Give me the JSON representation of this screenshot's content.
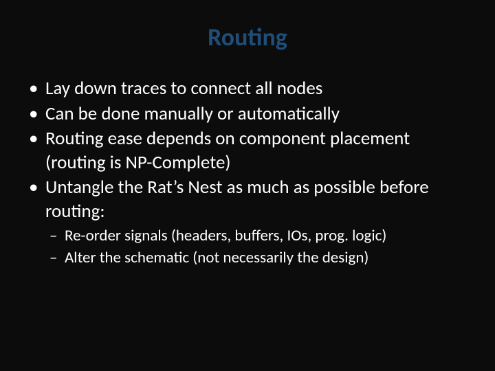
{
  "slide": {
    "background_color": "#0c0c0c",
    "title": {
      "text": "Routing",
      "color": "#1f4e79",
      "fontsize_pt": 36,
      "font_weight": 700,
      "align": "center"
    },
    "body_color": "#ffffff",
    "bullet_fontsize_pt": 27,
    "sub_bullet_fontsize_pt": 23,
    "bullets": [
      {
        "text": "Lay down traces to connect all nodes"
      },
      {
        "text": "Can be done manually or automatically"
      },
      {
        "text": "Routing ease depends on component placement (routing is NP-Complete)"
      },
      {
        "text": "Untangle the Rat’s Nest as much as possible before routing:",
        "sub": [
          "Re-order signals (headers, buffers, IOs, prog. logic)",
          "Alter the schematic (not necessarily the design)"
        ]
      }
    ]
  }
}
